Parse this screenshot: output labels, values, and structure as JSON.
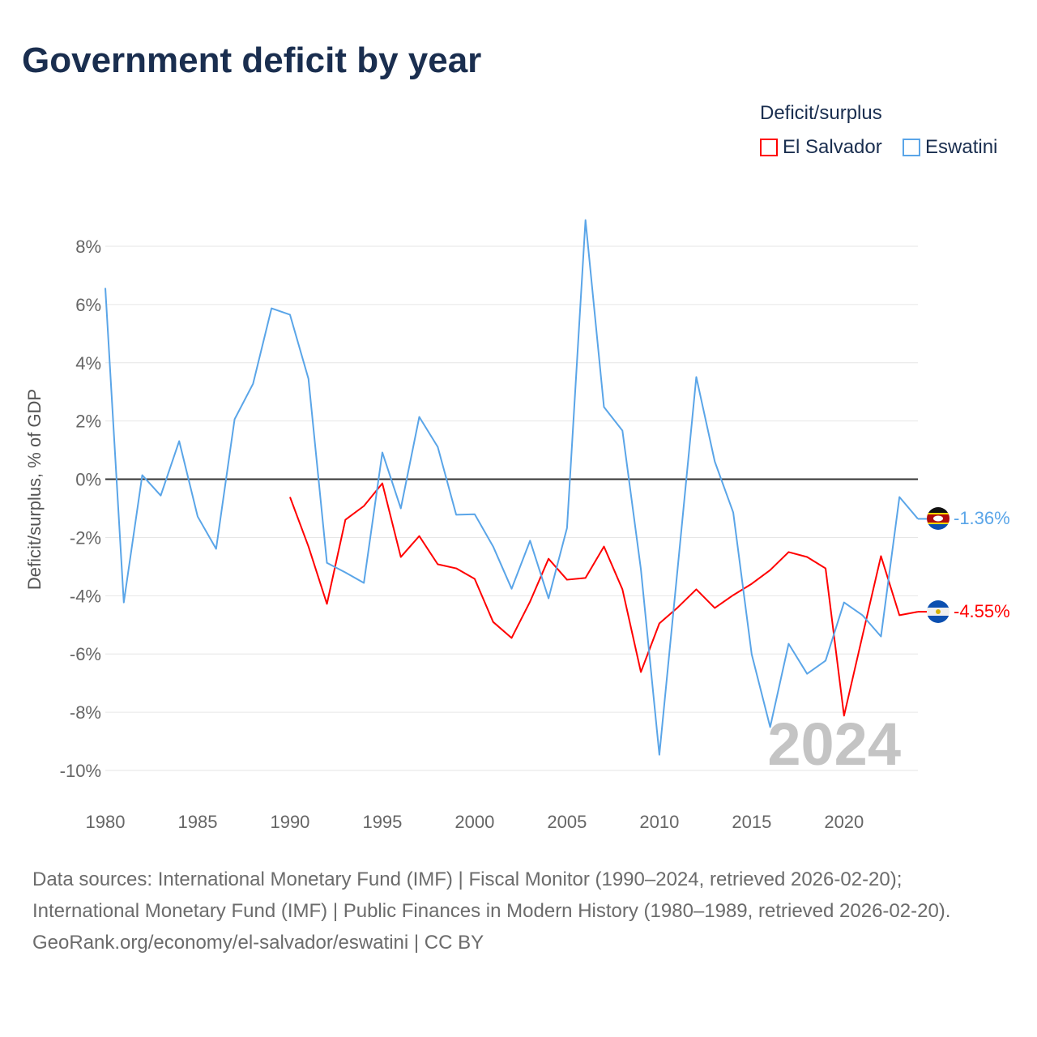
{
  "title": "Government deficit by year",
  "legend": {
    "title": "Deficit/surplus",
    "items": [
      {
        "name": "El Salvador",
        "color": "#ff0000"
      },
      {
        "name": "Eswatini",
        "color": "#5aa5e8"
      }
    ]
  },
  "chart_data": {
    "type": "line",
    "title": "Government deficit by year",
    "xlabel": "",
    "ylabel": "Deficit/surplus, % of GDP",
    "xlim": [
      1980,
      2024
    ],
    "ylim": [
      -10,
      8
    ],
    "yticks": [
      8,
      6,
      4,
      2,
      0,
      -2,
      -4,
      -6,
      -8,
      -10
    ],
    "ytick_labels": [
      "8%",
      "6%",
      "4%",
      "2%",
      "0%",
      "-2%",
      "-4%",
      "-6%",
      "-8%",
      "-10%"
    ],
    "xticks": [
      1980,
      1985,
      1990,
      1995,
      2000,
      2005,
      2010,
      2015,
      2020
    ],
    "xtick_labels": [
      "1980",
      "1985",
      "1990",
      "1995",
      "2000",
      "2005",
      "2010",
      "2015",
      "2020"
    ],
    "grid": true,
    "legend_position": "top-right",
    "series": [
      {
        "name": "El Salvador",
        "color": "#ff0000",
        "end_label": "-4.55%",
        "x": [
          1990,
          1991,
          1992,
          1993,
          1994,
          1995,
          1996,
          1997,
          1998,
          1999,
          2000,
          2001,
          2002,
          2003,
          2004,
          2005,
          2006,
          2007,
          2008,
          2009,
          2010,
          2011,
          2012,
          2013,
          2014,
          2015,
          2016,
          2017,
          2018,
          2019,
          2020,
          2021,
          2022,
          2023,
          2024
        ],
        "values": [
          -0.61,
          -2.31,
          -4.28,
          -1.39,
          -0.92,
          -0.14,
          -2.67,
          -1.95,
          -2.92,
          -3.06,
          -3.42,
          -4.9,
          -5.45,
          -4.2,
          -2.73,
          -3.45,
          -3.39,
          -2.31,
          -3.78,
          -6.62,
          -4.95,
          -4.4,
          -3.78,
          -4.42,
          -3.98,
          -3.59,
          -3.12,
          -2.5,
          -2.67,
          -3.06,
          -8.12,
          -5.37,
          -2.64,
          -4.67,
          -4.55
        ]
      },
      {
        "name": "Eswatini",
        "color": "#5aa5e8",
        "end_label": "-1.36%",
        "x": [
          1980,
          1981,
          1982,
          1983,
          1984,
          1985,
          1986,
          1987,
          1988,
          1989,
          1990,
          1991,
          1992,
          1993,
          1994,
          1995,
          1996,
          1997,
          1998,
          1999,
          2000,
          2001,
          2002,
          2003,
          2004,
          2005,
          2006,
          2007,
          2008,
          2009,
          2010,
          2011,
          2012,
          2013,
          2014,
          2015,
          2016,
          2017,
          2018,
          2019,
          2020,
          2021,
          2022,
          2023,
          2024
        ],
        "values": [
          6.57,
          -4.23,
          0.14,
          -0.56,
          1.31,
          -1.28,
          -2.39,
          2.06,
          3.28,
          5.87,
          5.65,
          3.45,
          -2.87,
          -3.2,
          -3.56,
          0.92,
          -1.0,
          2.14,
          1.11,
          -1.22,
          -1.2,
          -2.31,
          -3.76,
          -2.11,
          -4.09,
          -1.67,
          8.9,
          2.48,
          1.67,
          -3.09,
          -9.46,
          -3.0,
          3.51,
          0.61,
          -1.14,
          -6.01,
          -8.51,
          -5.65,
          -6.68,
          -6.23,
          -4.23,
          -4.67,
          -5.4,
          -0.61,
          -1.36
        ]
      }
    ],
    "annotations": [
      "2024"
    ]
  },
  "footer": {
    "sources": "Data sources: International Monetary Fund (IMF) | Fiscal Monitor (1990–2024, retrieved 2026-02-20); International Monetary Fund (IMF) | Public Finances in Modern History (1980–1989, retrieved 2026-02-20).",
    "link": "GeoRank.org/economy/el-salvador/eswatini | CC BY"
  }
}
